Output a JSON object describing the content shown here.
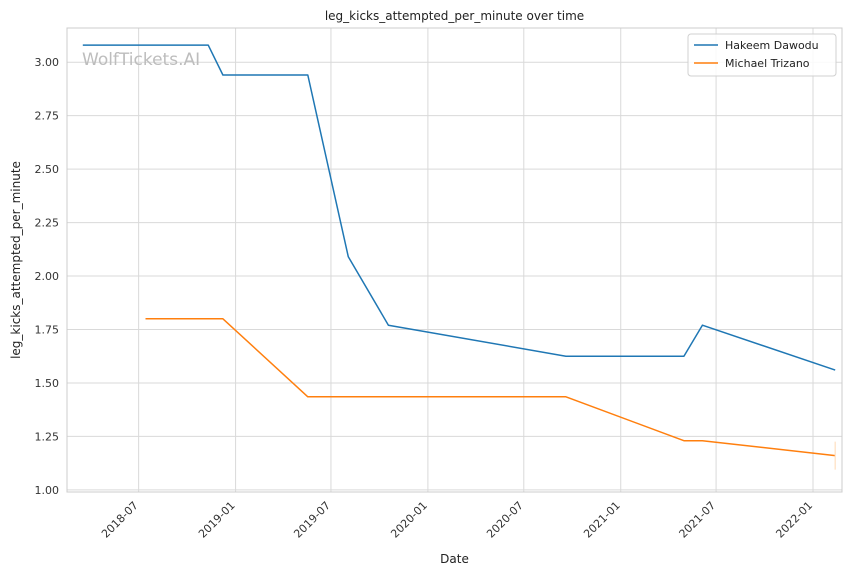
{
  "chart_data": {
    "type": "line",
    "title": "leg_kicks_attempted_per_minute over time",
    "xlabel": "Date",
    "ylabel": "leg_kicks_attempted_per_minute",
    "watermark": "WolfTickets.AI",
    "ylim": [
      0.99,
      3.16
    ],
    "xlim": [
      "2018-02-15",
      "2022-02-25"
    ],
    "grid": true,
    "legend_position": "top-right",
    "x_ticks": [
      "2018-07",
      "2019-01",
      "2019-07",
      "2020-01",
      "2020-07",
      "2021-01",
      "2021-07",
      "2022-01"
    ],
    "y_ticks": [
      "1.00",
      "1.25",
      "1.50",
      "1.75",
      "2.00",
      "2.25",
      "2.50",
      "2.75",
      "3.00"
    ],
    "series": [
      {
        "name": "Hakeem Dawodu",
        "color": "#1f77b4",
        "points": [
          {
            "x": "2018-03-17",
            "y": 3.08
          },
          {
            "x": "2018-11-10",
            "y": 3.08
          },
          {
            "x": "2018-12-08",
            "y": 2.94
          },
          {
            "x": "2019-05-18",
            "y": 2.94
          },
          {
            "x": "2019-08-03",
            "y": 2.09
          },
          {
            "x": "2019-10-18",
            "y": 1.77
          },
          {
            "x": "2020-09-19",
            "y": 1.625
          },
          {
            "x": "2021-05-01",
            "y": 1.625
          },
          {
            "x": "2021-06-05",
            "y": 1.77
          },
          {
            "x": "2022-02-12",
            "y": 1.56
          }
        ]
      },
      {
        "name": "Michael Trizano",
        "color": "#ff7f0e",
        "points": [
          {
            "x": "2018-07-14",
            "y": 1.8
          },
          {
            "x": "2018-12-08",
            "y": 1.8
          },
          {
            "x": "2019-05-18",
            "y": 1.435
          },
          {
            "x": "2020-09-19",
            "y": 1.435
          },
          {
            "x": "2021-05-01",
            "y": 1.23
          },
          {
            "x": "2021-06-05",
            "y": 1.23
          },
          {
            "x": "2022-02-12",
            "y": 1.16
          }
        ]
      }
    ]
  }
}
